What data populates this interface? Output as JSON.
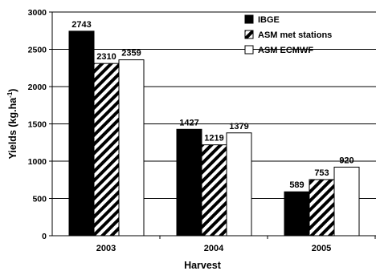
{
  "chart_data": {
    "type": "bar",
    "xlabel": "Harvest",
    "ylabel": "Yields (kg.ha",
    "ylabel_superscript": "-1",
    "ylabel_suffix": ")",
    "categories": [
      "2003",
      "2004",
      "2005"
    ],
    "ylim": [
      0,
      3000
    ],
    "yticks": [
      0,
      500,
      1000,
      1500,
      2000,
      2500,
      3000
    ],
    "grid": "horizontal",
    "legend_position": "top-right",
    "series": [
      {
        "name": "IBGE",
        "values": [
          2743,
          1427,
          589
        ],
        "fill": "solid-black"
      },
      {
        "name": "ASM met stations",
        "values": [
          2310,
          1219,
          753
        ],
        "fill": "diagonal-hatch"
      },
      {
        "name": "ASM ECMWF",
        "values": [
          2359,
          1379,
          920
        ],
        "fill": "white"
      }
    ]
  },
  "colors": {
    "solid": "#000000",
    "outline": "#000000",
    "grid": "#000000",
    "background": "#ffffff"
  }
}
